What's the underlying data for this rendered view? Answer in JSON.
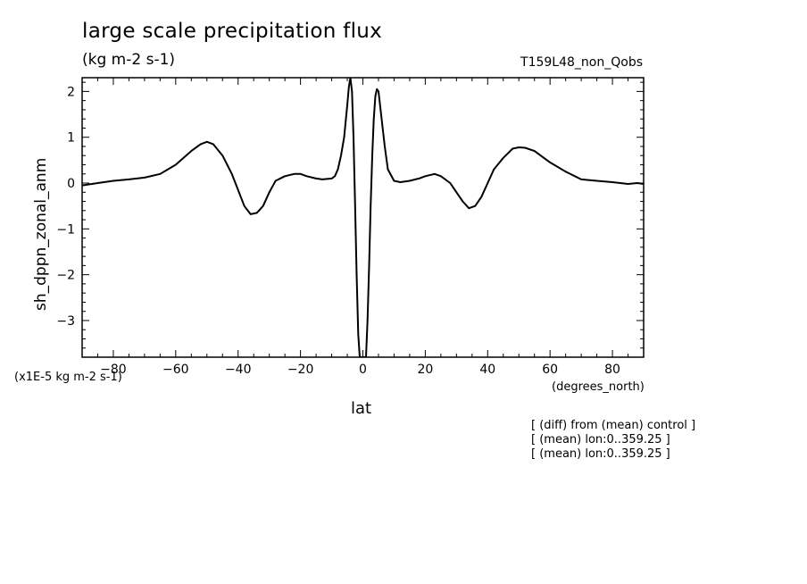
{
  "chart_data": {
    "type": "line",
    "title": "large scale precipitation flux",
    "units": "(kg m-2 s-1)",
    "run_label": "T159L48_non_Qobs",
    "xlabel": "lat",
    "x_units": "(degrees_north)",
    "ylabel": "sh_dppn_zonal_anm",
    "y_scale_factor": "(x1E-5 kg m-2 s-1)",
    "xlim": [
      -90,
      90
    ],
    "ylim": [
      -3.8,
      2.3
    ],
    "x_ticks": [
      -80,
      -60,
      -40,
      -20,
      0,
      20,
      40,
      60,
      80
    ],
    "y_ticks": [
      -3,
      -2,
      -1,
      0,
      1,
      2
    ],
    "grid": false,
    "series": [
      {
        "x": [
          -90,
          -85,
          -80,
          -75,
          -70,
          -65,
          -60,
          -55,
          -52,
          -50,
          -48,
          -45,
          -42,
          -40,
          -38,
          -36,
          -34,
          -32,
          -30,
          -28,
          -25,
          -22,
          -20,
          -18,
          -15,
          -13,
          -10,
          -9,
          -8,
          -7,
          -6,
          -5,
          -4.5,
          -4,
          -3.5,
          -3,
          -2.5,
          -2,
          -1.5,
          -1,
          -0.5,
          0,
          0.5,
          1,
          1.5,
          2,
          2.5,
          3,
          3.5,
          4,
          4.5,
          5,
          6,
          7,
          8,
          10,
          12,
          15,
          18,
          20,
          23,
          25,
          28,
          30,
          32,
          34,
          36,
          38,
          40,
          42,
          45,
          48,
          50,
          52,
          55,
          58,
          60,
          65,
          70,
          75,
          80,
          85,
          88,
          90
        ],
        "y": [
          -0.05,
          0.0,
          0.05,
          0.08,
          0.12,
          0.2,
          0.4,
          0.7,
          0.85,
          0.9,
          0.85,
          0.6,
          0.2,
          -0.15,
          -0.5,
          -0.68,
          -0.65,
          -0.5,
          -0.2,
          0.05,
          0.15,
          0.2,
          0.2,
          0.15,
          0.1,
          0.08,
          0.1,
          0.15,
          0.3,
          0.6,
          1.0,
          1.7,
          2.1,
          2.3,
          2.0,
          1.0,
          -0.5,
          -2.0,
          -3.3,
          -3.8,
          -3.8,
          -3.8,
          -3.8,
          -3.8,
          -3.0,
          -1.8,
          -0.5,
          0.6,
          1.4,
          1.9,
          2.05,
          2.0,
          1.4,
          0.8,
          0.3,
          0.05,
          0.02,
          0.05,
          0.1,
          0.15,
          0.2,
          0.15,
          0.0,
          -0.2,
          -0.4,
          -0.55,
          -0.5,
          -0.3,
          0.0,
          0.3,
          0.55,
          0.75,
          0.78,
          0.77,
          0.7,
          0.55,
          0.45,
          0.25,
          0.08,
          0.05,
          0.02,
          -0.02,
          0.0,
          -0.02
        ]
      }
    ]
  },
  "notes": [
    "[ (diff) from (mean) control ]",
    "[ (mean) lon:0..359.25 ]",
    "[ (mean) lon:0..359.25 ]"
  ],
  "colors": {
    "line": "#000000",
    "background": "#ffffff"
  }
}
